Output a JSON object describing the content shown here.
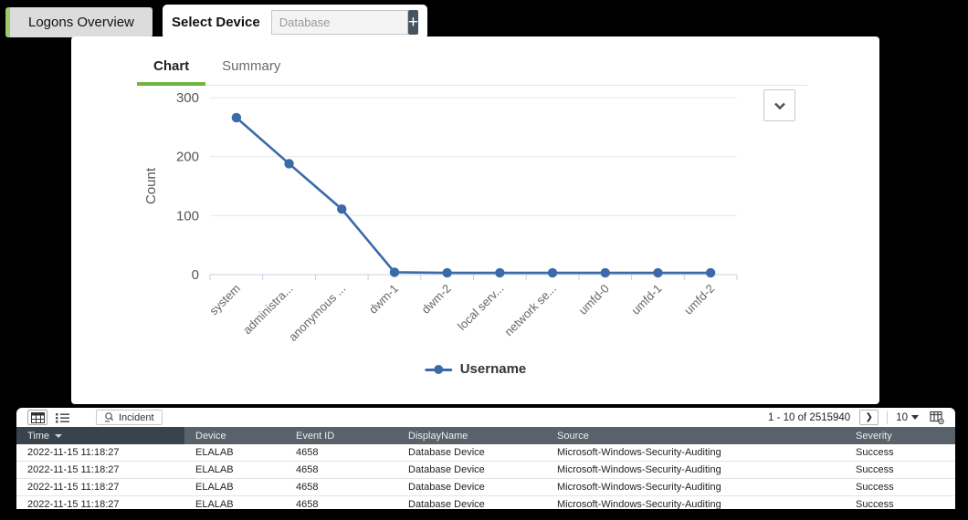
{
  "page": {
    "overview_tab_label": "Logons Overview",
    "select_device": {
      "label": "Select Device",
      "placeholder": "Database",
      "add_button_label": "+"
    }
  },
  "tabs": {
    "chart_label": "Chart",
    "summary_label": "Summary"
  },
  "chart_data": {
    "type": "line",
    "categories": [
      "system",
      "administra...",
      "anonymous ...",
      "dwm-1",
      "dwm-2",
      "local serv...",
      "network se...",
      "umfd-0",
      "umfd-1",
      "umfd-2"
    ],
    "series": [
      {
        "name": "Username",
        "values": [
          266,
          188,
          111,
          4,
          3,
          3,
          3,
          3,
          3,
          3
        ]
      }
    ],
    "ylabel": "Count",
    "xlabel": "",
    "ylim": [
      0,
      300
    ],
    "yticks": [
      0,
      100,
      200,
      300
    ],
    "grid": true,
    "legend_position": "bottom",
    "line_color": "#3a6ba8",
    "axis_color": "#c6d0df",
    "grid_color": "#e8e8e8"
  },
  "table": {
    "toolbar": {
      "incident_label": "Incident",
      "range_label": "1 - 10 of 2515940",
      "next_label": "❯",
      "page_size": "10"
    },
    "columns": [
      "Time",
      "Device",
      "Event ID",
      "DisplayName",
      "Source",
      "Severity"
    ],
    "sorted_column": "Time",
    "rows": [
      [
        "2022-11-15 11:18:27",
        "ELALAB",
        "4658",
        "Database Device",
        "Microsoft-Windows-Security-Auditing",
        "Success"
      ],
      [
        "2022-11-15 11:18:27",
        "ELALAB",
        "4658",
        "Database Device",
        "Microsoft-Windows-Security-Auditing",
        "Success"
      ],
      [
        "2022-11-15 11:18:27",
        "ELALAB",
        "4658",
        "Database Device",
        "Microsoft-Windows-Security-Auditing",
        "Success"
      ],
      [
        "2022-11-15 11:18:27",
        "ELALAB",
        "4658",
        "Database Device",
        "Microsoft-Windows-Security-Auditing",
        "Success"
      ]
    ]
  }
}
